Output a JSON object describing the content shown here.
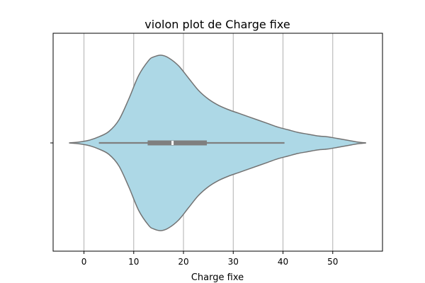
{
  "chart_data": {
    "type": "violin",
    "title": "violon plot de Charge fixe",
    "xlabel": "Charge fixe",
    "ylabel": "",
    "xlim": [
      -6.2,
      60
    ],
    "xticks": [
      0,
      10,
      20,
      30,
      40,
      50
    ],
    "orientation": "horizontal",
    "grid": "x",
    "colors": {
      "fill": "#add8e6",
      "edge": "#737373",
      "box": "#7f7f7f",
      "median": "#ffffff",
      "grid": "#b0b0b0"
    },
    "density_profile": {
      "x": [
        -3,
        -1,
        1,
        3,
        5,
        7,
        9,
        11,
        13,
        14,
        15.5,
        17,
        19,
        21,
        23,
        25,
        27,
        29,
        31,
        33,
        35,
        37,
        39,
        41,
        43,
        45,
        47,
        49,
        51,
        53,
        55,
        56.7
      ],
      "half_width": [
        0,
        0.01,
        0.03,
        0.07,
        0.13,
        0.26,
        0.5,
        0.77,
        0.94,
        0.98,
        1.0,
        0.97,
        0.88,
        0.74,
        0.6,
        0.5,
        0.43,
        0.38,
        0.34,
        0.3,
        0.26,
        0.22,
        0.18,
        0.15,
        0.12,
        0.1,
        0.08,
        0.07,
        0.05,
        0.03,
        0.01,
        0
      ]
    },
    "box": {
      "whisker_low": 3,
      "q1": 12.8,
      "median": 17.8,
      "q3": 24.7,
      "whisker_high": 40.3
    }
  }
}
